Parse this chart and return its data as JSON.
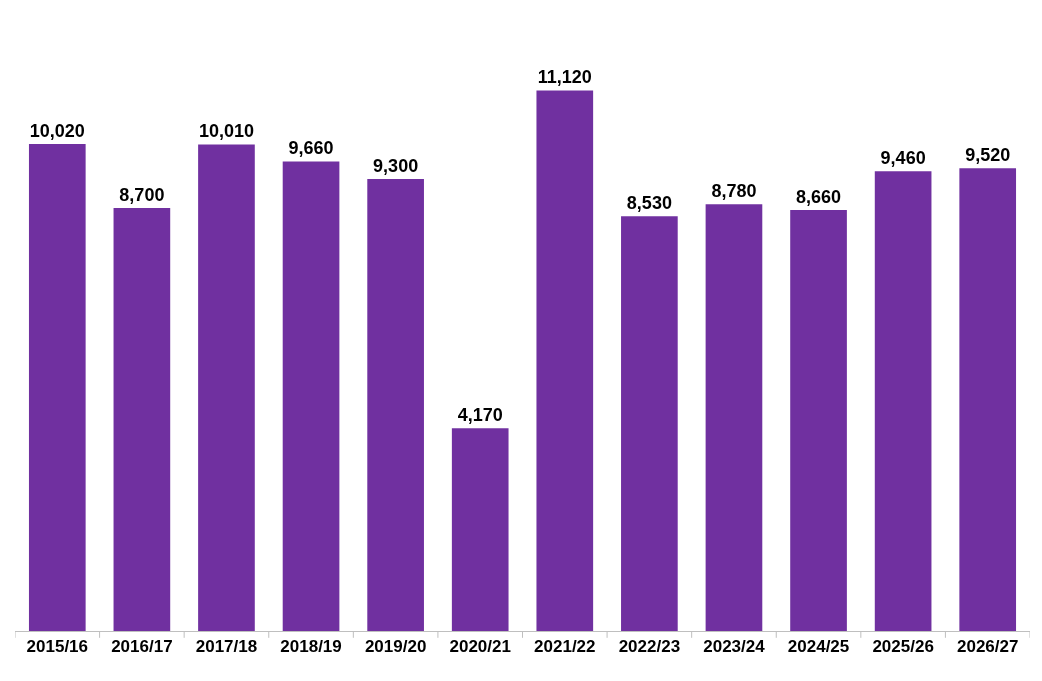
{
  "chart_data": {
    "type": "bar",
    "categories": [
      "2015/16",
      "2016/17",
      "2017/18",
      "2018/19",
      "2019/20",
      "2020/21",
      "2021/22",
      "2022/23",
      "2023/24",
      "2024/25",
      "2025/26",
      "2026/27"
    ],
    "values": [
      10020,
      8700,
      10010,
      9660,
      9300,
      4170,
      11120,
      8530,
      8780,
      8660,
      9460,
      9520
    ],
    "value_labels": [
      "10,020",
      "8,700",
      "10,010",
      "9,660",
      "9,300",
      "4,170",
      "11,120",
      "8,530",
      "8,780",
      "8,660",
      "9,460",
      "9,520"
    ],
    "color": "#7030a0",
    "tick_labels": "x"
  }
}
